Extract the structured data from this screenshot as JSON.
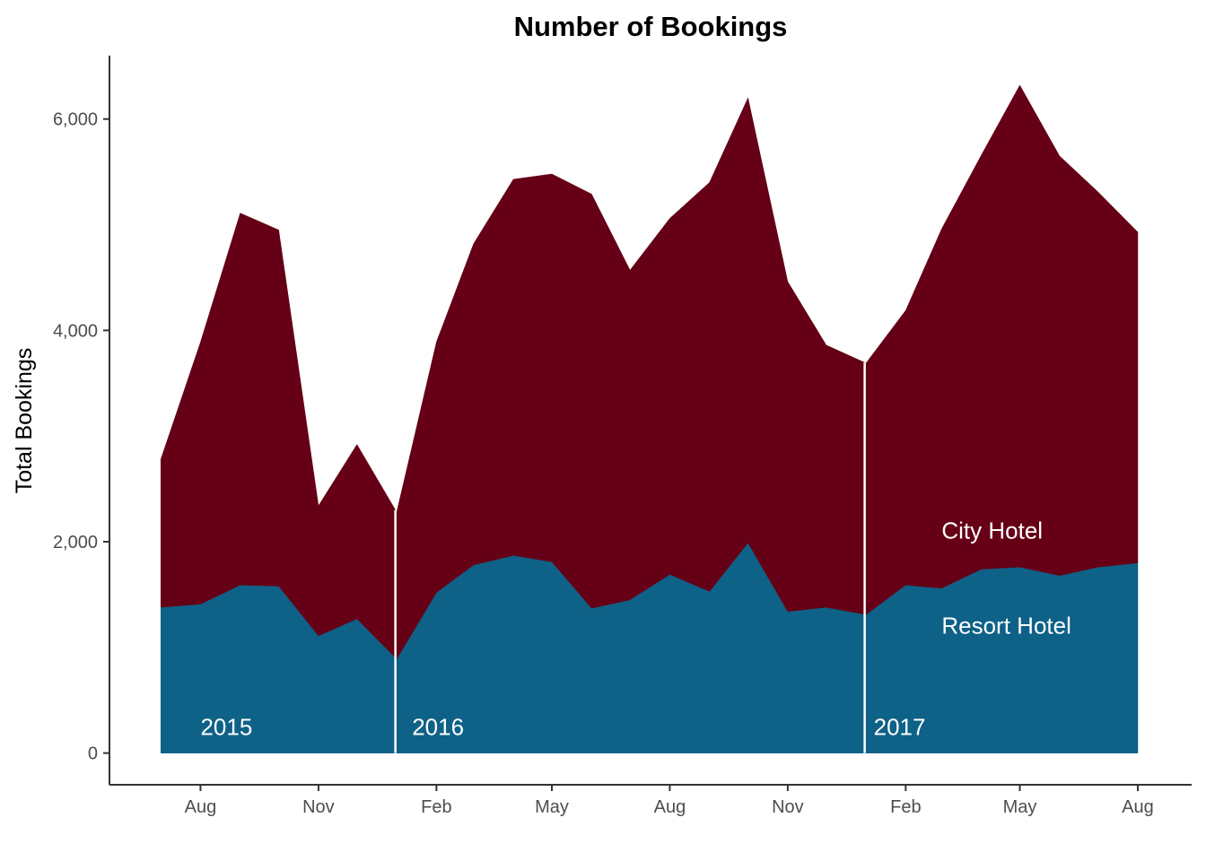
{
  "chart_data": {
    "type": "area",
    "stacked": true,
    "title": "Number of Bookings",
    "xlabel": "",
    "ylabel": "Total Bookings",
    "ylim": [
      -300,
      6600
    ],
    "yticks": [
      0,
      2000,
      4000,
      6000
    ],
    "ytick_labels": [
      "0",
      "2,000",
      "4,000",
      "6,000"
    ],
    "xlim": [
      "2015-05-22",
      "2017-09-12"
    ],
    "xticks": [
      "2015-08-01",
      "2015-11-01",
      "2016-02-01",
      "2016-05-01",
      "2016-08-01",
      "2016-11-01",
      "2017-02-01",
      "2017-05-01",
      "2017-08-01"
    ],
    "xtick_labels": [
      "Aug",
      "Nov",
      "Feb",
      "May",
      "Aug",
      "Nov",
      "Feb",
      "May",
      "Aug"
    ],
    "grid": false,
    "legend": "none",
    "x": [
      "2015-07-01",
      "2015-08-01",
      "2015-09-01",
      "2015-10-01",
      "2015-11-01",
      "2015-12-01",
      "2016-01-01",
      "2016-02-01",
      "2016-03-01",
      "2016-04-01",
      "2016-05-01",
      "2016-06-01",
      "2016-07-01",
      "2016-08-01",
      "2016-09-01",
      "2016-10-01",
      "2016-11-01",
      "2016-12-01",
      "2017-01-01",
      "2017-02-01",
      "2017-03-01",
      "2017-04-01",
      "2017-05-01",
      "2017-06-01",
      "2017-07-01",
      "2017-08-01"
    ],
    "series": [
      {
        "name": "Resort Hotel",
        "color": "#0e6187",
        "values": [
          1380,
          1410,
          1590,
          1580,
          1110,
          1270,
          890,
          1520,
          1780,
          1870,
          1810,
          1370,
          1450,
          1690,
          1530,
          1990,
          1340,
          1380,
          1310,
          1590,
          1560,
          1740,
          1760,
          1680,
          1760,
          1800
        ]
      },
      {
        "name": "City Hotel",
        "color": "#650016",
        "values": [
          1400,
          2480,
          3520,
          3370,
          1230,
          1650,
          1390,
          2370,
          3040,
          3560,
          3670,
          3920,
          3120,
          3370,
          3870,
          4210,
          3120,
          2480,
          2380,
          2600,
          3400,
          3920,
          4560,
          3970,
          3550,
          3130
        ]
      }
    ],
    "series_labels": [
      {
        "text": "City Hotel",
        "x": "2017-03-01",
        "y": 2030
      },
      {
        "text": "Resort Hotel",
        "x": "2017-03-01",
        "y": 1130
      }
    ],
    "year_labels": [
      {
        "text": "2015",
        "x": "2015-08-01",
        "y": 170
      },
      {
        "text": "2016",
        "x": "2016-01-13",
        "y": 170
      },
      {
        "text": "2017",
        "x": "2017-01-07",
        "y": 170
      }
    ],
    "year_dividers": [
      "2015-12-31",
      "2016-12-31"
    ]
  }
}
